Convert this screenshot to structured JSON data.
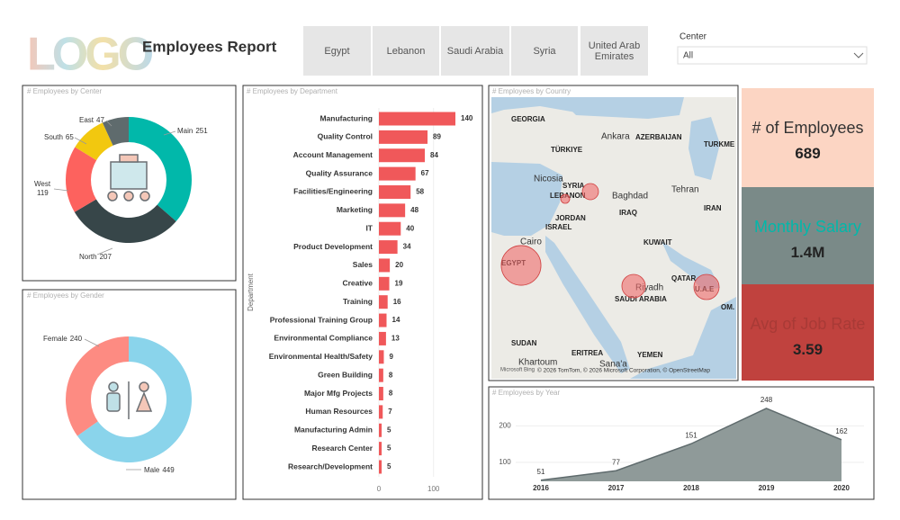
{
  "header": {
    "logo": "LOGO",
    "title": "Employees Report",
    "buttons": [
      "Egypt",
      "Lebanon",
      "Saudi Arabia",
      "Syria",
      "United Arab Emirates"
    ],
    "slicer": {
      "label": "Center",
      "value": "All"
    }
  },
  "kpis": [
    {
      "title": "# of Employees",
      "value": "689"
    },
    {
      "title": "Monthly Salary",
      "value": "1.4M"
    },
    {
      "title": "Avg of Job Rate",
      "value": "3.59"
    }
  ],
  "chart_data": [
    {
      "type": "donut",
      "title": "# Employees by Center",
      "categories": [
        "Main",
        "North",
        "West",
        "South",
        "East"
      ],
      "values": [
        251,
        207,
        119,
        65,
        47
      ],
      "colors": [
        "#01b8aa",
        "#374649",
        "#fd625e",
        "#f2c80f",
        "#5f6b6d"
      ]
    },
    {
      "type": "donut",
      "title": "# Employees by Gender",
      "categories": [
        "Male",
        "Female"
      ],
      "values": [
        449,
        240
      ],
      "colors": [
        "#8ad4eb",
        "#fd8b82"
      ]
    },
    {
      "type": "hbar",
      "title": "# Employees by Department",
      "y_label": "Department",
      "categories": [
        "Manufacturing",
        "Quality Control",
        "Account Management",
        "Quality Assurance",
        "Facilities/Engineering",
        "Marketing",
        "IT",
        "Product Development",
        "Sales",
        "Creative",
        "Training",
        "Professional Training Group",
        "Environmental Compliance",
        "Environmental Health/Safety",
        "Green Building",
        "Major Mfg Projects",
        "Human Resources",
        "Manufacturing Admin",
        "Research Center",
        "Research/Development"
      ],
      "values": [
        140,
        89,
        84,
        67,
        58,
        48,
        40,
        34,
        20,
        19,
        16,
        14,
        13,
        9,
        8,
        8,
        7,
        5,
        5,
        5
      ],
      "color": "#f0585a",
      "xlim": [
        0,
        140
      ],
      "xticks": [
        0,
        100
      ]
    },
    {
      "type": "map",
      "title": "# Employees by Country",
      "categories": [
        "Egypt",
        "Saudi Arabia",
        "United Arab Emirates",
        "Syria",
        "Lebanon"
      ],
      "values": [
        350,
        122,
        141,
        58,
        18
      ],
      "color": "#f06a6a",
      "place_labels": [
        "GEORGIA",
        "Ankara",
        "TÜRKIYE",
        "AZERBAIJAN",
        "TURKME",
        "Nicosia",
        "SYRIA",
        "LEBANON",
        "Baghdad",
        "Tehran",
        "IRAQ",
        "IRAN",
        "JORDAN",
        "ISRAEL",
        "KUWAIT",
        "Cairo",
        "EGYPT",
        "QATAR",
        "Riyadh",
        "SAUDI ARABIA",
        "U.A.E",
        "OM.",
        "SUDAN",
        "ERITREA",
        "YEMEN",
        "Khartoum",
        "Sana'a"
      ],
      "source": "Microsoft Bing",
      "attribution": "© 2026 TomTom, © 2026 Microsoft Corporation, © OpenStreetMap"
    },
    {
      "type": "area",
      "title": "# Employees by Year",
      "x": [
        2016,
        2017,
        2018,
        2019,
        2020
      ],
      "values": [
        51,
        77,
        151,
        248,
        162
      ],
      "color": "#8f9a99",
      "line_color": "#5f6b6d",
      "ylim": [
        48,
        270
      ],
      "yticks": [
        100,
        200
      ]
    }
  ]
}
